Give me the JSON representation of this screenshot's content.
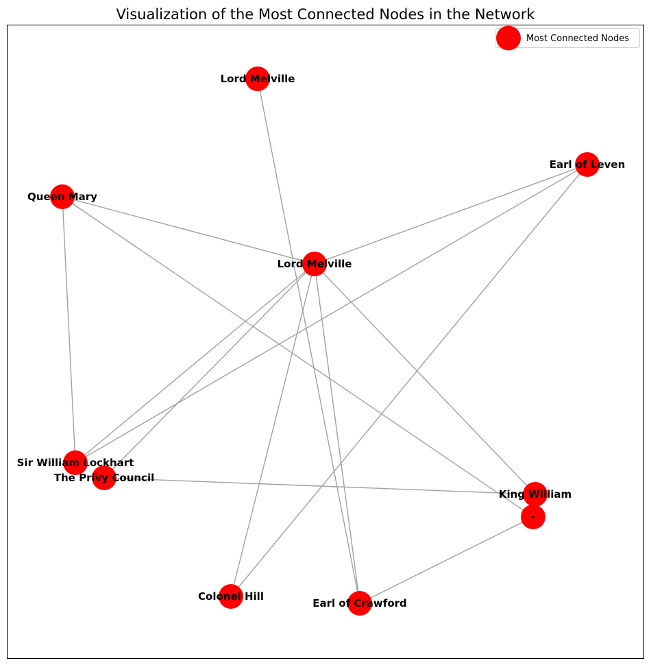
{
  "title": "Visualization of the Most Connected Nodes in the Network",
  "legend": {
    "label": "Most Connected Nodes",
    "marker_color": "#ff0000"
  },
  "colors": {
    "node": "#ff0000",
    "edge": "#a0a0a0",
    "frame": "#000000"
  },
  "nodes": [
    {
      "id": "lord-melville-top",
      "label": "Lord Melville"
    },
    {
      "id": "earl-of-leven",
      "label": "Earl of Leven"
    },
    {
      "id": "queen-mary",
      "label": "Queen Mary"
    },
    {
      "id": "lord-melville-center",
      "label": "Lord Melville"
    },
    {
      "id": "sir-william-lockhart",
      "label": "Sir William Lockhart"
    },
    {
      "id": "the-privy-council",
      "label": "The Privy Council"
    },
    {
      "id": "king-william",
      "label": "King William"
    },
    {
      "id": "dash",
      "label": "-"
    },
    {
      "id": "colonel-hill",
      "label": "Colonel Hill"
    },
    {
      "id": "earl-of-crawford",
      "label": "Earl of Crawford"
    }
  ],
  "edges": [
    [
      "queen-mary",
      "lord-melville-center"
    ],
    [
      "queen-mary",
      "sir-william-lockhart"
    ],
    [
      "queen-mary",
      "dash"
    ],
    [
      "earl-of-leven",
      "lord-melville-center"
    ],
    [
      "earl-of-leven",
      "sir-william-lockhart"
    ],
    [
      "earl-of-leven",
      "colonel-hill"
    ],
    [
      "lord-melville-top",
      "earl-of-crawford"
    ],
    [
      "lord-melville-center",
      "sir-william-lockhart"
    ],
    [
      "lord-melville-center",
      "the-privy-council"
    ],
    [
      "lord-melville-center",
      "king-william"
    ],
    [
      "lord-melville-center",
      "colonel-hill"
    ],
    [
      "lord-melville-center",
      "earl-of-crawford"
    ],
    [
      "the-privy-council",
      "king-william"
    ],
    [
      "dash",
      "earl-of-crawford"
    ]
  ]
}
